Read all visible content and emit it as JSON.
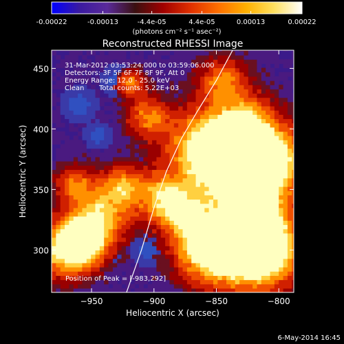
{
  "colorbar": {
    "tick_labels": [
      "-0.00022",
      "-0.00013",
      "-4.4e-05",
      "4.4e-05",
      "0.00013",
      "0.00022"
    ],
    "tick_values": [
      -0.00022,
      -0.00013,
      -4.4e-05,
      4.4e-05,
      0.00013,
      0.00022
    ],
    "range": [
      -0.00022,
      0.00022
    ],
    "unit_label": "(photons cm⁻² s⁻¹ asec⁻²)",
    "colors": [
      "#0000ff",
      "#3a1aa0",
      "#5a2a9a",
      "#3a1010",
      "#a00000",
      "#e03000",
      "#ff7000",
      "#ffb000",
      "#ffe060",
      "#ffffff"
    ]
  },
  "chart_data": {
    "type": "heatmap",
    "title": "Reconstructed RHESSI Image",
    "xlabel": "Heliocentric X (arcsec)",
    "ylabel": "Heliocentric Y (arcsec)",
    "xlim": [
      -982,
      -788
    ],
    "ylim": [
      265,
      465
    ],
    "x_ticks": [
      -950,
      -900,
      -850,
      -800
    ],
    "y_ticks": [
      300,
      350,
      400,
      450
    ],
    "x_tick_labels": [
      "−950",
      "−900",
      "−850",
      "−800"
    ],
    "y_tick_labels": [
      "300",
      "350",
      "400",
      "450"
    ],
    "limb_curve": [
      [
        -922,
        265
      ],
      [
        -910,
        300
      ],
      [
        -900,
        335
      ],
      [
        -890,
        365
      ],
      [
        -878,
        392
      ],
      [
        -865,
        415
      ],
      [
        -850,
        440
      ],
      [
        -837,
        465
      ]
    ],
    "annotations": [
      "31-Mar-2012 03:53:24.000 to 03:59:06.000",
      "Detectors: 3F 5F 6F 7F 8F 9F, Att 0",
      "Energy Range: 12.0 - 25.0 keV",
      "Clean",
      "Total counts: 5.22E+03"
    ],
    "peak_label": "Position of Peak = [-983,292]",
    "peak_position": [
      -983,
      292
    ]
  },
  "footer": {
    "timestamp": "6-May-2014 16:45"
  }
}
